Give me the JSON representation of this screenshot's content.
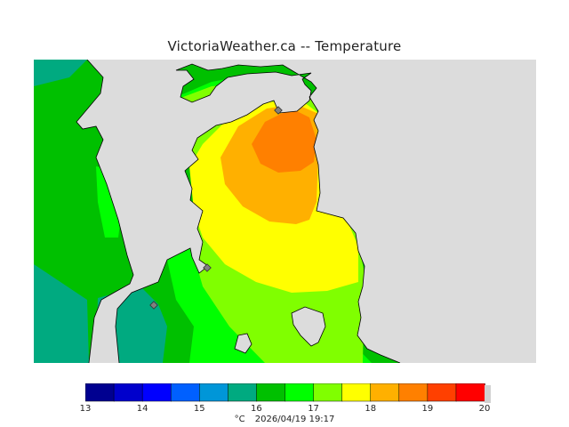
{
  "title": "VictoriaWeather.ca -- Temperature",
  "map": {
    "land_color": "#dcdcdc",
    "stations": 3
  },
  "legend": {
    "colors": [
      "#000090",
      "#0000cc",
      "#0000ff",
      "#0060ff",
      "#0096d8",
      "#00aa80",
      "#00c000",
      "#00ff00",
      "#80ff00",
      "#ffff00",
      "#ffb000",
      "#ff8000",
      "#ff4000",
      "#ff0000"
    ],
    "end_color": "#d0d0d0",
    "ticks": [
      "13",
      "14",
      "15",
      "16",
      "17",
      "18",
      "19",
      "20"
    ]
  },
  "footer": {
    "unit": "°C",
    "timestamp": "2026/04/19 19:17"
  }
}
